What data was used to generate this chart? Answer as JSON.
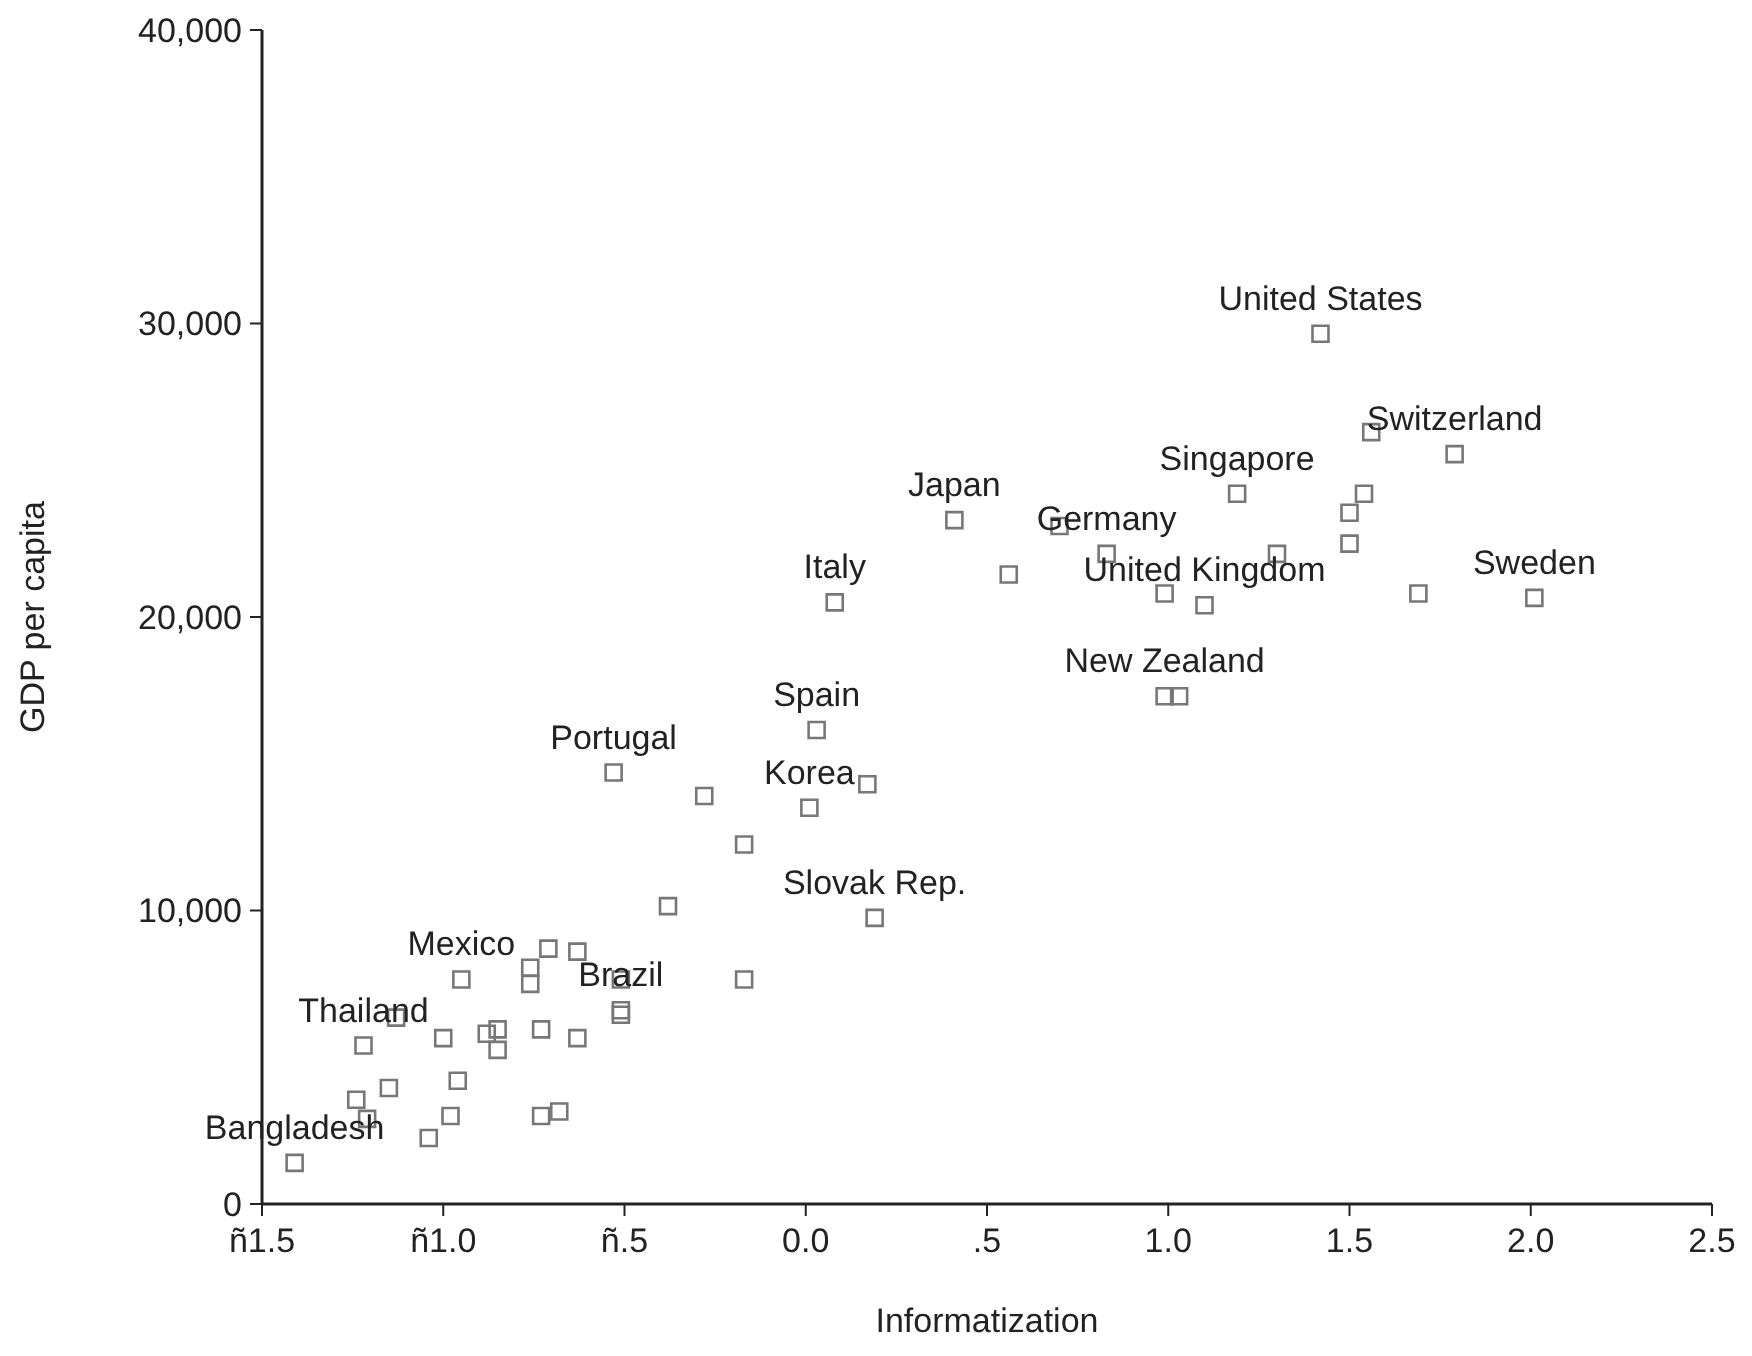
{
  "chart_data": {
    "type": "scatter",
    "xlabel": "Informatization",
    "ylabel": "GDP per capita",
    "xlim": [
      -1.5,
      2.5
    ],
    "xticks": [
      {
        "value": -1.5,
        "label": "ñ1.5"
      },
      {
        "value": -1.0,
        "label": "ñ1.0"
      },
      {
        "value": -0.5,
        "label": "ñ.5"
      },
      {
        "value": 0,
        "label": "0.0"
      },
      {
        "value": 0.5,
        "label": ".5"
      },
      {
        "value": 1.0,
        "label": "1.0"
      },
      {
        "value": 1.5,
        "label": "1.5"
      },
      {
        "value": 2.0,
        "label": "2.0"
      },
      {
        "value": 2.5,
        "label": "2.5"
      }
    ],
    "ylim": [
      0,
      40000
    ],
    "yticks": [
      {
        "value": 0,
        "label": "0"
      },
      {
        "value": 10000,
        "label": "10,000"
      },
      {
        "value": 20000,
        "label": "20,000"
      },
      {
        "value": 30000,
        "label": "30,000"
      },
      {
        "value": 40000,
        "label": "40,000"
      }
    ],
    "grid": false,
    "marker": "square",
    "series": [
      {
        "color": "#777777",
        "x": [
          -1.41,
          -1.24,
          -1.21,
          -1.15,
          -1.22,
          -1.13,
          -1.04,
          -0.98,
          -0.96,
          -1.0,
          -0.95,
          -0.88,
          -0.85,
          -0.85,
          -0.76,
          -0.76,
          -0.71,
          -0.73,
          -0.73,
          -0.68,
          -0.63,
          -0.63,
          -0.51,
          -0.51,
          -0.51,
          -0.38,
          -0.17,
          -0.17,
          0.41,
          0.08,
          0.03,
          -0.53,
          -0.28,
          0.01,
          0.17,
          0.19,
          1.42,
          1.56,
          1.79,
          1.19,
          1.54,
          1.5,
          1.5,
          0.7,
          0.83,
          1.3,
          0.56,
          0.99,
          1.1,
          1.69,
          2.01,
          0.99,
          1.03
        ],
        "values": [
          1400,
          3550,
          2900,
          3950,
          5400,
          6350,
          2250,
          3000,
          4200,
          5650,
          7650,
          5800,
          5950,
          5250,
          8050,
          7500,
          8700,
          5950,
          3000,
          3150,
          8600,
          5650,
          7650,
          6600,
          6450,
          10150,
          7650,
          12250,
          23300,
          20500,
          16150,
          14700,
          13900,
          13500,
          14300,
          9750,
          29650,
          26300,
          25550,
          24200,
          24200,
          23550,
          22500,
          23100,
          22150,
          22150,
          21450,
          20800,
          20400,
          20800,
          20650,
          17300,
          17300
        ]
      }
    ],
    "annotations": [
      {
        "text": "United States",
        "x": 1.42,
        "y": 29650
      },
      {
        "text": "Switzerland",
        "x": 1.79,
        "y": 25550
      },
      {
        "text": "Singapore",
        "x": 1.19,
        "y": 24200
      },
      {
        "text": "Japan",
        "x": 0.41,
        "y": 23300
      },
      {
        "text": "Germany",
        "x": 0.83,
        "y": 22150
      },
      {
        "text": "United Kingdom",
        "x": 1.1,
        "y": 20400
      },
      {
        "text": "Italy",
        "x": 0.08,
        "y": 20500
      },
      {
        "text": "Sweden",
        "x": 2.01,
        "y": 20650
      },
      {
        "text": "New Zealand",
        "x": 0.99,
        "y": 17300
      },
      {
        "text": "Spain",
        "x": 0.03,
        "y": 16150
      },
      {
        "text": "Portugal",
        "x": -0.53,
        "y": 14700
      },
      {
        "text": "Korea",
        "x": 0.01,
        "y": 13500
      },
      {
        "text": "Slovak Rep.",
        "x": 0.19,
        "y": 9750
      },
      {
        "text": "Mexico",
        "x": -0.95,
        "y": 7650
      },
      {
        "text": "Brazil",
        "x": -0.51,
        "y": 6600
      },
      {
        "text": "Thailand",
        "x": -1.22,
        "y": 5400
      },
      {
        "text": "Bangladesh",
        "x": -1.41,
        "y": 1400
      }
    ]
  }
}
